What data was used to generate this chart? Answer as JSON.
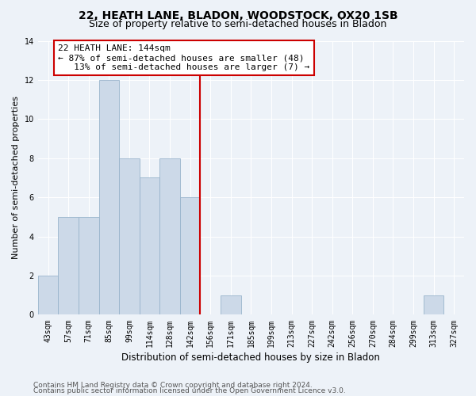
{
  "title": "22, HEATH LANE, BLADON, WOODSTOCK, OX20 1SB",
  "subtitle": "Size of property relative to semi-detached houses in Bladon",
  "xlabel": "Distribution of semi-detached houses by size in Bladon",
  "ylabel": "Number of semi-detached properties",
  "bin_labels": [
    "43sqm",
    "57sqm",
    "71sqm",
    "85sqm",
    "99sqm",
    "114sqm",
    "128sqm",
    "142sqm",
    "156sqm",
    "171sqm",
    "185sqm",
    "199sqm",
    "213sqm",
    "227sqm",
    "242sqm",
    "256sqm",
    "270sqm",
    "284sqm",
    "299sqm",
    "313sqm",
    "327sqm"
  ],
  "bin_values": [
    2,
    5,
    5,
    12,
    8,
    7,
    8,
    6,
    0,
    1,
    0,
    0,
    0,
    0,
    0,
    0,
    0,
    0,
    0,
    1,
    0
  ],
  "bar_color": "#ccd9e8",
  "bar_edge_color": "#99b4cc",
  "vline_x_index": 7.5,
  "vline_color": "#cc0000",
  "annotation_text": "22 HEATH LANE: 144sqm\n← 87% of semi-detached houses are smaller (48)\n   13% of semi-detached houses are larger (7) →",
  "annotation_box_color": "#ffffff",
  "annotation_box_edge_color": "#cc0000",
  "ylim": [
    0,
    14
  ],
  "yticks": [
    0,
    2,
    4,
    6,
    8,
    10,
    12,
    14
  ],
  "background_color": "#edf2f8",
  "grid_color": "#ffffff",
  "footer_line1": "Contains HM Land Registry data © Crown copyright and database right 2024.",
  "footer_line2": "Contains public sector information licensed under the Open Government Licence v3.0.",
  "title_fontsize": 10,
  "subtitle_fontsize": 9,
  "xlabel_fontsize": 8.5,
  "ylabel_fontsize": 8,
  "tick_fontsize": 7,
  "annotation_fontsize": 8,
  "footer_fontsize": 6.5
}
